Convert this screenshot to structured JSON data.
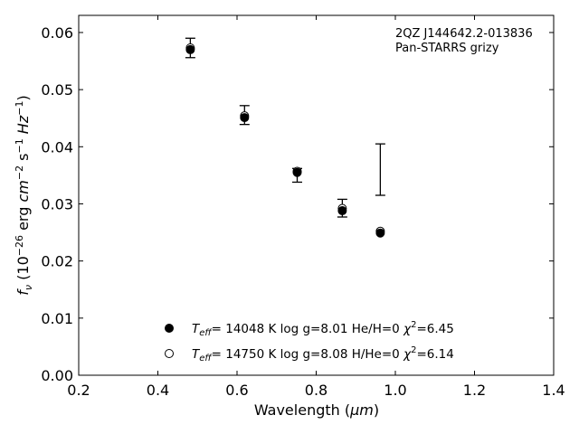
{
  "chart_data": {
    "type": "scatter",
    "xlabel_main": "Wavelength (",
    "xlabel_unit": "μm",
    "xlabel_close": ")",
    "ylabel": {
      "f": "f",
      "sub": "ν",
      "pre": " (10",
      "exp1": "−26",
      "erg": " erg ",
      "cm": "cm",
      "exp2": "−2",
      "s": " s",
      "exp3": "−1",
      "hz": " Hz",
      "exp4": "−1",
      "close": ")"
    },
    "annotation": [
      "2QZ J144642.2-013836",
      "Pan-STARRS grizy"
    ],
    "xlim": [
      0.2,
      1.4
    ],
    "ylim": [
      0.0,
      0.063
    ],
    "xticks": [
      "0.2",
      "0.4",
      "0.6",
      "0.8",
      "1.0",
      "1.2",
      "1.4"
    ],
    "yticks": [
      "0.00",
      "0.01",
      "0.02",
      "0.03",
      "0.04",
      "0.05",
      "0.06"
    ],
    "observed": [
      {
        "x": 0.482,
        "y": 0.0573,
        "ylo": 0.0556,
        "yhi": 0.059
      },
      {
        "x": 0.619,
        "y": 0.0455,
        "ylo": 0.0439,
        "yhi": 0.0472
      },
      {
        "x": 0.752,
        "y": 0.0356,
        "ylo": 0.0338,
        "yhi": 0.0362
      },
      {
        "x": 0.866,
        "y": 0.0293,
        "ylo": 0.0277,
        "yhi": 0.0308
      },
      {
        "x": 0.962,
        "y": 0.036,
        "ylo": 0.0315,
        "yhi": 0.0405
      }
    ],
    "series": [
      {
        "name": "He/H=0",
        "teff_value": "= 14048 K  log g=8.01  He/H=0  ",
        "chi": "χ",
        "chi_exp": "2",
        "chi_value": "=6.45",
        "marker": "filled",
        "x": [
          0.482,
          0.619,
          0.752,
          0.866,
          0.962
        ],
        "y": [
          0.057,
          0.0451,
          0.0355,
          0.0288,
          0.0249
        ]
      },
      {
        "name": "H/He=0",
        "teff_value": "= 14750 K  log g=8.08  H/He=0  ",
        "chi": "χ",
        "chi_exp": "2",
        "chi_value": "=6.14",
        "marker": "open",
        "x": [
          0.482,
          0.619,
          0.752,
          0.866,
          0.962
        ],
        "y": [
          0.0573,
          0.0454,
          0.0357,
          0.0292,
          0.0252
        ]
      }
    ],
    "teff_label": "T",
    "teff_sub": "eff",
    "legend_position": "lower-center"
  }
}
